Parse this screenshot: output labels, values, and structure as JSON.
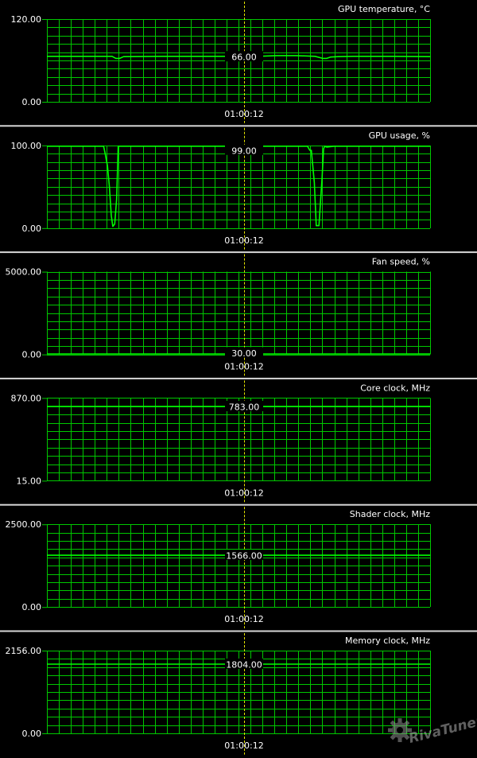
{
  "window": {
    "background_color": "#000000",
    "separator_color": "#d6d6d6",
    "grid_color": "#00c800",
    "line_color": "#00ff00",
    "cursor_color": "#e6e600",
    "text_color": "#ffffff"
  },
  "cursor_time": "01:00:12",
  "watermark": "RivaTuner",
  "chart_data": [
    {
      "type": "line",
      "title": "GPU temperature, °C",
      "ylim": [
        0,
        120
      ],
      "ymax_label": "120.00",
      "ymin_label": "0.00",
      "current_label": "66.00",
      "x_label": "01:00:12",
      "series": [
        {
          "x": [
            0,
            0.17,
            0.18,
            0.19,
            0.2,
            0.3,
            0.5,
            0.55,
            0.6,
            0.65,
            0.7,
            0.72,
            0.73,
            0.74,
            0.76,
            0.8,
            0.9,
            1.0
          ],
          "values": [
            66,
            66,
            63,
            63,
            65.5,
            66,
            66,
            66,
            67,
            67,
            66,
            63,
            63,
            65,
            65.5,
            66,
            66,
            65.5
          ]
        }
      ]
    },
    {
      "type": "line",
      "title": "GPU usage, %",
      "ylim": [
        0,
        100
      ],
      "ymax_label": "100.00",
      "ymin_label": "0.00",
      "current_label": "99.00",
      "x_label": "01:00:12",
      "series": [
        {
          "x": [
            0,
            0.148,
            0.152,
            0.158,
            0.163,
            0.168,
            0.172,
            0.177,
            0.182,
            0.186,
            0.19,
            0.5,
            0.68,
            0.686,
            0.69,
            0.698,
            0.703,
            0.71,
            0.718,
            0.722,
            0.725,
            0.73,
            0.75,
            1.0
          ],
          "values": [
            99,
            99,
            90,
            75,
            50,
            15,
            2,
            5,
            35,
            99,
            99,
            99,
            99,
            94,
            94,
            55,
            3,
            3,
            60,
            96,
            99,
            98,
            99,
            99
          ]
        }
      ]
    },
    {
      "type": "line",
      "title": "Fan speed, %",
      "ylim": [
        0,
        5000
      ],
      "ymax_label": "5000.00",
      "ymin_label": "0.00",
      "current_label": "30.00",
      "x_label": "01:00:12",
      "series": [
        {
          "x": [
            0,
            1
          ],
          "values": [
            30,
            30
          ]
        }
      ]
    },
    {
      "type": "line",
      "title": "Core clock, MHz",
      "ylim": [
        15,
        870
      ],
      "ymax_label": "870.00",
      "ymin_label": "15.00",
      "current_label": "783.00",
      "x_label": "01:00:12",
      "series": [
        {
          "x": [
            0,
            1
          ],
          "values": [
            783,
            783
          ]
        }
      ]
    },
    {
      "type": "line",
      "title": "Shader clock, MHz",
      "ylim": [
        0,
        2500
      ],
      "ymax_label": "2500.00",
      "ymin_label": "0.00",
      "current_label": "1566.00",
      "x_label": "01:00:12",
      "series": [
        {
          "x": [
            0,
            1
          ],
          "values": [
            1566,
            1566
          ]
        }
      ]
    },
    {
      "type": "line",
      "title": "Memory clock, MHz",
      "ylim": [
        0,
        2156
      ],
      "ymax_label": "2156.00",
      "ymin_label": "0.00",
      "current_label": "1804.00",
      "x_label": "01:00:12",
      "series": [
        {
          "x": [
            0,
            1
          ],
          "values": [
            1804,
            1804
          ]
        }
      ]
    }
  ]
}
